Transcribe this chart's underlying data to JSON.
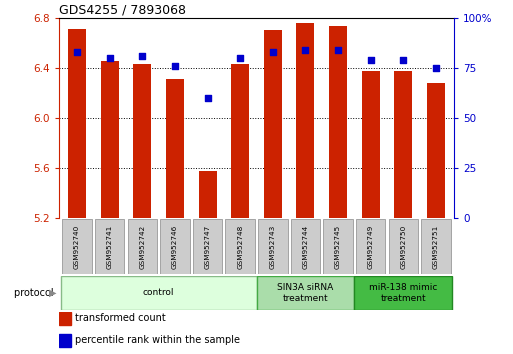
{
  "title": "GDS4255 / 7893068",
  "samples": [
    "GSM952740",
    "GSM952741",
    "GSM952742",
    "GSM952746",
    "GSM952747",
    "GSM952748",
    "GSM952743",
    "GSM952744",
    "GSM952745",
    "GSM952749",
    "GSM952750",
    "GSM952751"
  ],
  "bar_values": [
    6.71,
    6.45,
    6.43,
    6.31,
    5.57,
    6.43,
    6.7,
    6.76,
    6.73,
    6.37,
    6.37,
    6.28
  ],
  "dot_values": [
    83,
    80,
    81,
    76,
    60,
    80,
    83,
    84,
    84,
    79,
    79,
    75
  ],
  "bar_color": "#cc2200",
  "dot_color": "#0000cc",
  "ylim_left": [
    5.2,
    6.8
  ],
  "ylim_right": [
    0,
    100
  ],
  "yticks_left": [
    5.2,
    5.6,
    6.0,
    6.4,
    6.8
  ],
  "yticks_right": [
    0,
    25,
    50,
    75,
    100
  ],
  "groups": [
    {
      "label": "control",
      "start": 0,
      "end": 6,
      "color": "#ddffdd",
      "border": "#88bb88"
    },
    {
      "label": "SIN3A siRNA\ntreatment",
      "start": 6,
      "end": 9,
      "color": "#aaddaa",
      "border": "#44aa44"
    },
    {
      "label": "miR-138 mimic\ntreatment",
      "start": 9,
      "end": 12,
      "color": "#44bb44",
      "border": "#228822"
    }
  ],
  "legend_items": [
    {
      "label": "transformed count",
      "color": "#cc2200"
    },
    {
      "label": "percentile rank within the sample",
      "color": "#0000cc"
    }
  ],
  "protocol_label": "protocol"
}
